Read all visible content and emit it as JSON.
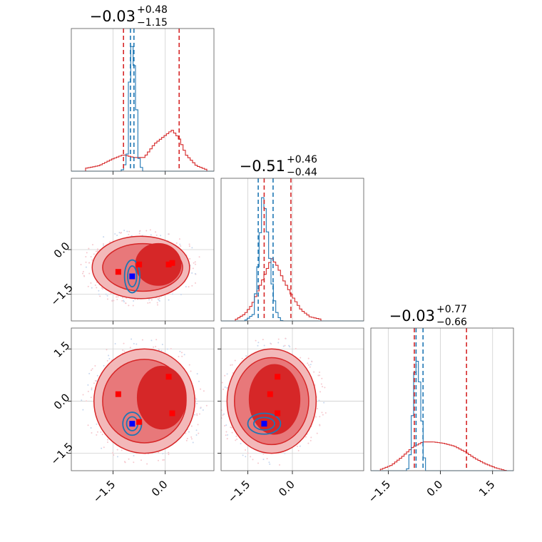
{
  "chart_data": {
    "type": "corner",
    "grid": true,
    "colors": {
      "posterior_red": "#d62728",
      "posterior_blue": "#1f77b4",
      "marker_red": "#ff0000",
      "marker_blue": "#0000ff"
    },
    "parameters": [
      {
        "range": [
          -2.7,
          1.4
        ],
        "ticks": [
          -1.5,
          0.0
        ],
        "tick_labels": [
          "−1.5",
          "0.0"
        ]
      },
      {
        "range": [
          -2.4,
          2.4
        ],
        "ticks": [
          -1.5,
          0.0
        ],
        "tick_labels": [
          "−1.5",
          "0.0"
        ]
      },
      {
        "range": [
          -2.0,
          2.1
        ],
        "ticks": [
          -1.5,
          0.0,
          1.5
        ],
        "tick_labels": [
          "−1.5",
          "0.0",
          "1.5"
        ]
      }
    ],
    "titles": [
      {
        "value": "−0.03",
        "upper": "+0.48",
        "lower": "−1.15"
      },
      {
        "value": "−0.51",
        "upper": "+0.46",
        "lower": "−0.44"
      },
      {
        "value": "−0.03",
        "upper": "+0.77",
        "lower": "−0.66"
      }
    ],
    "quantiles_red": [
      [
        -1.2,
        0.4
      ],
      [
        -0.95,
        -0.05
      ],
      [
        -0.75,
        0.75
      ]
    ],
    "quantiles_blue": [
      [
        -1.0,
        -0.9
      ],
      [
        -1.15,
        -0.65
      ],
      [
        -0.7,
        -0.5
      ]
    ],
    "histograms": [
      {
        "red": [
          [
            -2.3,
            0.02
          ],
          [
            -1.9,
            0.04
          ],
          [
            -1.5,
            0.09
          ],
          [
            -1.2,
            0.12
          ],
          [
            -0.9,
            0.1
          ],
          [
            -0.6,
            0.1
          ],
          [
            -0.3,
            0.2
          ],
          [
            0.0,
            0.26
          ],
          [
            0.2,
            0.3
          ],
          [
            0.4,
            0.24
          ],
          [
            0.6,
            0.12
          ],
          [
            0.9,
            0.04
          ],
          [
            1.2,
            0.01
          ]
        ],
        "blue": [
          [
            -1.25,
            0.0
          ],
          [
            -1.1,
            0.08
          ],
          [
            -1.0,
            0.85
          ],
          [
            -0.93,
            0.95
          ],
          [
            -0.85,
            0.6
          ],
          [
            -0.75,
            0.08
          ],
          [
            -0.65,
            0.0
          ]
        ]
      },
      {
        "red": [
          [
            -1.9,
            0.01
          ],
          [
            -1.6,
            0.05
          ],
          [
            -1.35,
            0.12
          ],
          [
            -1.1,
            0.25
          ],
          [
            -0.9,
            0.35
          ],
          [
            -0.7,
            0.46
          ],
          [
            -0.5,
            0.4
          ],
          [
            -0.3,
            0.3
          ],
          [
            0.0,
            0.18
          ],
          [
            0.3,
            0.08
          ],
          [
            0.6,
            0.03
          ],
          [
            1.0,
            0.01
          ]
        ],
        "blue": [
          [
            -1.6,
            0.0
          ],
          [
            -1.3,
            0.05
          ],
          [
            -1.15,
            0.42
          ],
          [
            -1.0,
            0.9
          ],
          [
            -0.9,
            0.8
          ],
          [
            -0.8,
            0.55
          ],
          [
            -0.65,
            0.2
          ],
          [
            -0.5,
            0.04
          ],
          [
            -0.35,
            0.0
          ]
        ]
      },
      {
        "red": [
          [
            -1.7,
            0.01
          ],
          [
            -1.4,
            0.04
          ],
          [
            -1.1,
            0.1
          ],
          [
            -0.8,
            0.17
          ],
          [
            -0.5,
            0.21
          ],
          [
            -0.2,
            0.21
          ],
          [
            0.1,
            0.2
          ],
          [
            0.4,
            0.18
          ],
          [
            0.7,
            0.14
          ],
          [
            1.0,
            0.09
          ],
          [
            1.3,
            0.05
          ],
          [
            1.6,
            0.02
          ],
          [
            1.9,
            0.0
          ]
        ],
        "blue": [
          [
            -0.95,
            0.0
          ],
          [
            -0.85,
            0.15
          ],
          [
            -0.75,
            0.7
          ],
          [
            -0.65,
            0.82
          ],
          [
            -0.57,
            0.55
          ],
          [
            -0.48,
            0.12
          ],
          [
            -0.4,
            0.0
          ]
        ]
      }
    ],
    "markers": [
      {
        "pair": [
          0,
          1
        ],
        "red": [
          [
            -1.35,
            -0.75
          ],
          [
            -0.75,
            -0.5
          ],
          [
            0.1,
            -0.5
          ],
          [
            0.2,
            -0.45
          ]
        ],
        "blue": [
          [
            -0.95,
            -0.9
          ]
        ]
      },
      {
        "pair": [
          0,
          2
        ],
        "red": [
          [
            -1.35,
            0.2
          ],
          [
            -0.75,
            -0.6
          ],
          [
            0.1,
            0.7
          ],
          [
            0.2,
            -0.35
          ]
        ],
        "blue": [
          [
            -0.95,
            -0.65
          ]
        ]
      },
      {
        "pair": [
          1,
          2
        ],
        "red": [
          [
            -0.5,
            0.7
          ],
          [
            -0.75,
            0.2
          ],
          [
            -0.5,
            -0.35
          ]
        ],
        "blue": [
          [
            -0.95,
            -0.65
          ]
        ]
      }
    ],
    "contours": [
      {
        "pair": [
          0,
          1
        ],
        "red": [
          {
            "cx": -0.7,
            "cy": -0.6,
            "rx": 1.4,
            "ry": 1.05
          },
          {
            "cx": -0.65,
            "cy": -0.6,
            "rx": 1.15,
            "ry": 0.8
          },
          {
            "cx": -0.2,
            "cy": -0.5,
            "rx": 0.65,
            "ry": 0.7
          }
        ],
        "blue": [
          {
            "cx": -0.95,
            "cy": -0.9,
            "rx": 0.22,
            "ry": 0.55
          },
          {
            "cx": -0.95,
            "cy": -0.9,
            "rx": 0.13,
            "ry": 0.35
          }
        ]
      },
      {
        "pair": [
          0,
          2
        ],
        "red": [
          {
            "cx": -0.6,
            "cy": 0.0,
            "rx": 1.45,
            "ry": 1.5
          },
          {
            "cx": -0.6,
            "cy": 0.0,
            "rx": 1.2,
            "ry": 1.2
          },
          {
            "cx": -0.1,
            "cy": 0.1,
            "rx": 0.7,
            "ry": 0.9
          }
        ],
        "blue": [
          {
            "cx": -0.95,
            "cy": -0.65,
            "rx": 0.27,
            "ry": 0.33
          },
          {
            "cx": -0.95,
            "cy": -0.65,
            "rx": 0.16,
            "ry": 0.2
          }
        ]
      },
      {
        "pair": [
          1,
          2
        ],
        "red": [
          {
            "cx": -0.7,
            "cy": 0.0,
            "rx": 1.5,
            "ry": 1.5
          },
          {
            "cx": -0.7,
            "cy": 0.0,
            "rx": 1.25,
            "ry": 1.25
          },
          {
            "cx": -0.6,
            "cy": 0.05,
            "rx": 0.85,
            "ry": 1.0
          }
        ],
        "blue": [
          {
            "cx": -0.95,
            "cy": -0.65,
            "rx": 0.55,
            "ry": 0.3
          },
          {
            "cx": -0.95,
            "cy": -0.65,
            "rx": 0.35,
            "ry": 0.18
          }
        ]
      }
    ]
  }
}
